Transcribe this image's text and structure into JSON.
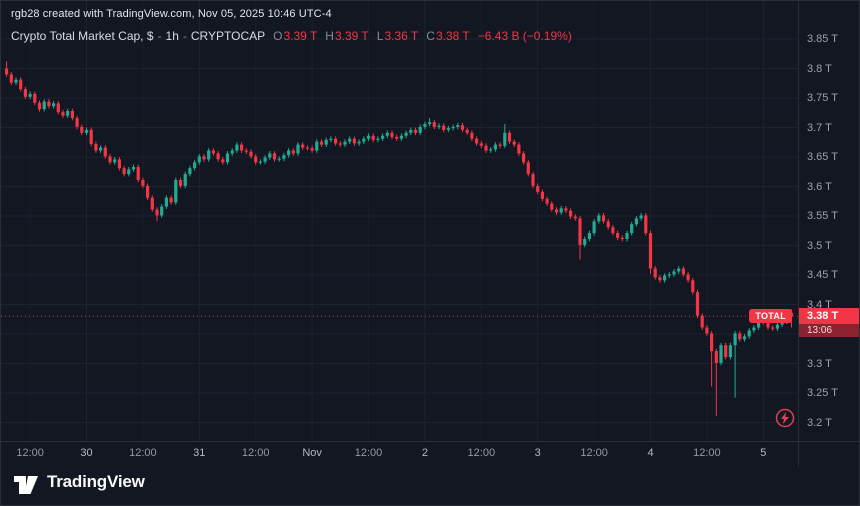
{
  "attribution": "rgb28 created with TradingView.com, Nov 05, 2025 10:46 UTC-4",
  "legend": {
    "symbol": "Crypto Total Market Cap, $",
    "separator": "-",
    "interval": "1h",
    "exchange": "CRYPTOCAP",
    "ohlc": [
      {
        "label": "O",
        "value": "3.39 T"
      },
      {
        "label": "H",
        "value": "3.39 T"
      },
      {
        "label": "L",
        "value": "3.36 T"
      },
      {
        "label": "C",
        "value": "3.38 T"
      }
    ],
    "change": "−6.43 B (−0.19%)"
  },
  "price_label": {
    "source": "TOTAL",
    "price": "3.38 T",
    "countdown": "13:06",
    "value": 3.38
  },
  "logo": {
    "text": "TradingView"
  },
  "colors": {
    "up": "#22ab94",
    "down": "#f23645",
    "bg": "#131722",
    "grid": "#1e222d",
    "axis_text": "#9ca1ab",
    "accent_red": "#f23645",
    "price_line": "#e8505e"
  },
  "chart_data": {
    "type": "candlestick",
    "title": "Crypto Total Market Cap (CRYPTOCAP:TOTAL), 1h",
    "unit": "trillions USD",
    "y_axis": {
      "values": [
        3.85,
        3.8,
        3.75,
        3.7,
        3.65,
        3.6,
        3.55,
        3.5,
        3.45,
        3.4,
        3.35,
        3.3,
        3.25,
        3.2
      ],
      "suffix": " T",
      "range": [
        3.18,
        3.87
      ]
    },
    "x_labels": [
      {
        "i": 5,
        "t": "12:00",
        "major": false
      },
      {
        "i": 17,
        "t": "30",
        "major": true
      },
      {
        "i": 29,
        "t": "12:00",
        "major": false
      },
      {
        "i": 41,
        "t": "31",
        "major": true
      },
      {
        "i": 53,
        "t": "12:00",
        "major": false
      },
      {
        "i": 65,
        "t": "Nov",
        "major": true
      },
      {
        "i": 77,
        "t": "12:00",
        "major": false
      },
      {
        "i": 89,
        "t": "2",
        "major": true
      },
      {
        "i": 101,
        "t": "12:00",
        "major": false
      },
      {
        "i": 113,
        "t": "3",
        "major": true
      },
      {
        "i": 125,
        "t": "12:00",
        "major": false
      },
      {
        "i": 137,
        "t": "4",
        "major": true
      },
      {
        "i": 149,
        "t": "12:00",
        "major": false
      },
      {
        "i": 161,
        "t": "5",
        "major": true
      }
    ],
    "first_open": 3.8,
    "closes": [
      3.79,
      3.776,
      3.781,
      3.765,
      3.752,
      3.757,
      3.742,
      3.731,
      3.744,
      3.736,
      3.741,
      3.726,
      3.72,
      3.728,
      3.716,
      3.701,
      3.691,
      3.696,
      3.672,
      3.661,
      3.666,
      3.651,
      3.641,
      3.646,
      3.631,
      3.621,
      3.629,
      3.633,
      3.611,
      3.601,
      3.581,
      3.561,
      3.551,
      3.566,
      3.581,
      3.573,
      3.611,
      3.601,
      3.621,
      3.631,
      3.641,
      3.651,
      3.646,
      3.661,
      3.656,
      3.646,
      3.641,
      3.656,
      3.661,
      3.671,
      3.661,
      3.659,
      3.651,
      3.641,
      3.642,
      3.649,
      3.656,
      3.646,
      3.647,
      3.653,
      3.661,
      3.656,
      3.671,
      3.666,
      3.665,
      3.661,
      3.676,
      3.671,
      3.679,
      3.681,
      3.673,
      3.671,
      3.676,
      3.681,
      3.673,
      3.676,
      3.681,
      3.686,
      3.679,
      3.681,
      3.686,
      3.691,
      3.684,
      3.681,
      3.686,
      3.691,
      3.696,
      3.691,
      3.701,
      3.706,
      3.709,
      3.701,
      3.703,
      3.696,
      3.699,
      3.701,
      3.704,
      3.696,
      3.691,
      3.681,
      3.673,
      3.669,
      3.661,
      3.663,
      3.671,
      3.669,
      3.691,
      3.676,
      3.671,
      3.656,
      3.641,
      3.621,
      3.601,
      3.591,
      3.579,
      3.571,
      3.561,
      3.556,
      3.563,
      3.559,
      3.549,
      3.546,
      3.501,
      3.511,
      3.521,
      3.541,
      3.551,
      3.541,
      3.531,
      3.521,
      3.513,
      3.511,
      3.521,
      3.536,
      3.546,
      3.551,
      3.521,
      3.461,
      3.446,
      3.441,
      3.449,
      3.451,
      3.456,
      3.461,
      3.451,
      3.441,
      3.421,
      3.381,
      3.361,
      3.351,
      3.321,
      3.301,
      3.331,
      3.311,
      3.331,
      3.351,
      3.341,
      3.346,
      3.356,
      3.361,
      3.371,
      3.369,
      3.361,
      3.359,
      3.366,
      3.371,
      3.386,
      3.38
    ],
    "wick_overrides": {
      "0": {
        "h": 3.812
      },
      "32": {
        "l": 3.541
      },
      "90": {
        "h": 3.716
      },
      "106": {
        "h": 3.706
      },
      "122": {
        "l": 3.476
      },
      "137": {
        "l": 3.452
      },
      "150": {
        "l": 3.261
      },
      "151": {
        "l": 3.211
      },
      "155": {
        "l": 3.242
      },
      "167": {
        "h": 3.392,
        "l": 3.361
      }
    },
    "price_line": 3.38
  }
}
